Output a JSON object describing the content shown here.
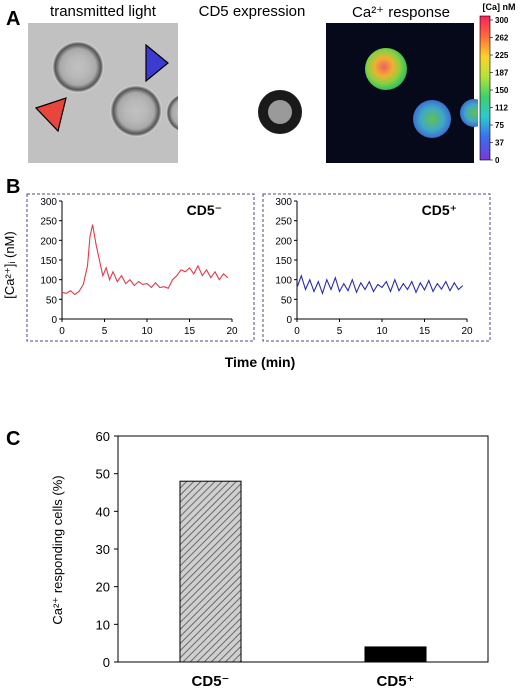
{
  "panel_a": {
    "letter": "A",
    "titles": [
      "transmitted light",
      "CD5 expression",
      "Ca²⁺ response"
    ],
    "scale_title": "[Ca] nM",
    "scale_ticks": [
      "300",
      "262",
      "225",
      "187",
      "150",
      "112",
      "75",
      "37",
      "0"
    ],
    "colors": {
      "arrow_red": "#e8453c",
      "arrow_blue": "#3b3bd0"
    }
  },
  "panel_b": {
    "letter": "B",
    "ylabel": "[Ca²⁺]ᵢ (nM)",
    "xlabel": "Time (min)"
  },
  "panel_c": {
    "letter": "C",
    "ylabel": "Ca²⁺ responding cells (%)"
  },
  "chart_data": [
    {
      "type": "line",
      "panel": "B-left",
      "label": "CD5⁻",
      "color": "#e23a4b",
      "xlim": [
        0,
        20
      ],
      "ylim": [
        0,
        300
      ],
      "xticks": [
        0,
        5,
        10,
        15,
        20
      ],
      "yticks": [
        0,
        50,
        100,
        150,
        200,
        250,
        300
      ],
      "series": [
        {
          "x": [
            0,
            0.5,
            1,
            1.5,
            2,
            2.5,
            3,
            3.3,
            3.6,
            4,
            4.4,
            4.8,
            5.2,
            5.6,
            6,
            6.5,
            7,
            7.5,
            8,
            8.5,
            9,
            9.5,
            10,
            10.5,
            11,
            11.5,
            12,
            12.5,
            13,
            13.5,
            14,
            14.5,
            15,
            15.5,
            16,
            16.5,
            17,
            17.5,
            18,
            18.5,
            19,
            19.5
          ],
          "y": [
            68,
            65,
            72,
            62,
            70,
            88,
            135,
            210,
            240,
            190,
            150,
            110,
            130,
            100,
            120,
            95,
            110,
            90,
            100,
            85,
            95,
            88,
            90,
            80,
            92,
            80,
            82,
            78,
            100,
            110,
            125,
            120,
            130,
            115,
            135,
            110,
            125,
            105,
            120,
            100,
            115,
            105
          ]
        }
      ]
    },
    {
      "type": "line",
      "panel": "B-right",
      "label": "CD5⁺",
      "color": "#2a2ab4",
      "xlim": [
        0,
        20
      ],
      "ylim": [
        0,
        300
      ],
      "xticks": [
        0,
        5,
        10,
        15,
        20
      ],
      "yticks": [
        0,
        50,
        100,
        150,
        200,
        250,
        300
      ],
      "series": [
        {
          "x": [
            0,
            0.5,
            1,
            1.5,
            2,
            2.5,
            3,
            3.5,
            4,
            4.5,
            5,
            5.5,
            6,
            6.5,
            7,
            7.5,
            8,
            8.5,
            9,
            9.5,
            10,
            10.5,
            11,
            11.5,
            12,
            12.5,
            13,
            13.5,
            14,
            14.5,
            15,
            15.5,
            16,
            16.5,
            17,
            17.5,
            18,
            18.5,
            19,
            19.5
          ],
          "y": [
            80,
            110,
            75,
            100,
            70,
            95,
            65,
            100,
            75,
            105,
            70,
            90,
            72,
            100,
            68,
            92,
            75,
            95,
            70,
            88,
            80,
            95,
            70,
            100,
            72,
            90,
            75,
            95,
            68,
            92,
            74,
            98,
            70,
            90,
            76,
            95,
            72,
            92,
            75,
            85
          ]
        }
      ]
    },
    {
      "type": "bar",
      "panel": "C",
      "categories": [
        "CD5⁻",
        "CD5⁺"
      ],
      "values": [
        48,
        4
      ],
      "ylim": [
        0,
        60
      ],
      "yticks": [
        0,
        10,
        20,
        30,
        40,
        50,
        60
      ],
      "colors": [
        "hatched-grey",
        "#000000"
      ]
    }
  ]
}
